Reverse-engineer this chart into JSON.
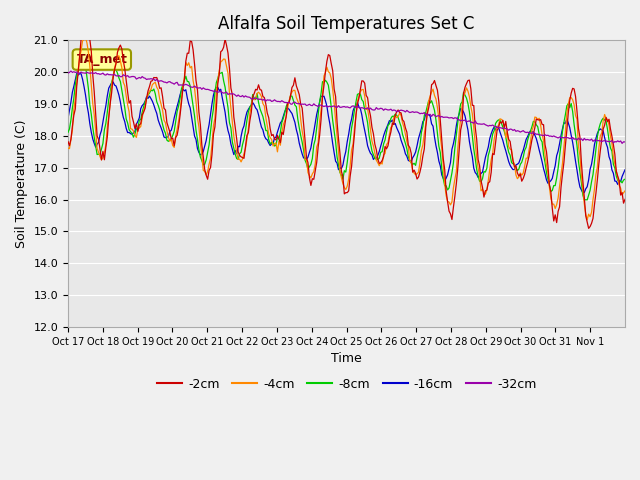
{
  "title": "Alfalfa Soil Temperatures Set C",
  "xlabel": "Time",
  "ylabel": "Soil Temperature (C)",
  "ylim": [
    12.0,
    21.0
  ],
  "yticks": [
    12.0,
    13.0,
    14.0,
    15.0,
    16.0,
    17.0,
    18.0,
    19.0,
    20.0,
    21.0
  ],
  "xtick_labels": [
    "Oct 17",
    "Oct 18",
    "Oct 19",
    "Oct 20",
    "Oct 21",
    "Oct 22",
    "Oct 23",
    "Oct 24",
    "Oct 25",
    "Oct 26",
    "Oct 27",
    "Oct 28",
    "Oct 29",
    "Oct 30",
    "Oct 31",
    "Nov 1"
  ],
  "colors": {
    "m2cm": "#cc0000",
    "m4cm": "#ff8800",
    "m8cm": "#00cc00",
    "m16cm": "#0000cc",
    "m32cm": "#9900aa",
    "ta_met_box_face": "#ffff99",
    "ta_met_box_edge": "#999900",
    "ta_met_text": "#880000",
    "grid_color": "#ffffff",
    "plot_bg": "#e8e8e8",
    "fig_bg": "#f0f0f0"
  },
  "legend_labels": [
    "-2cm",
    "-4cm",
    "-8cm",
    "-16cm",
    "-32cm"
  ],
  "ta_met_label": "TA_met"
}
